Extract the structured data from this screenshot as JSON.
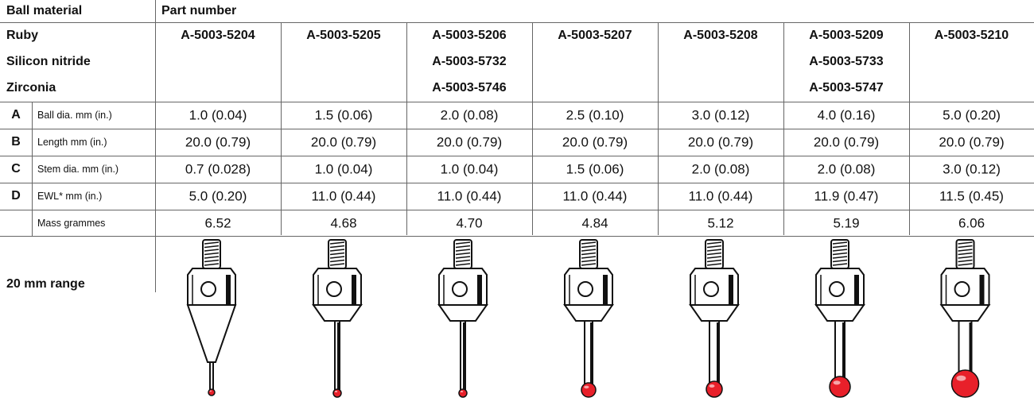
{
  "header": {
    "ball_material": "Ball material",
    "part_number": "Part number"
  },
  "materials": [
    "Ruby",
    "Silicon nitride",
    "Zirconia"
  ],
  "part_numbers": [
    [
      "A-5003-5204"
    ],
    [
      "A-5003-5205"
    ],
    [
      "A-5003-5206",
      "A-5003-5732",
      "A-5003-5746"
    ],
    [
      "A-5003-5207"
    ],
    [
      "A-5003-5208"
    ],
    [
      "A-5003-5209",
      "A-5003-5733",
      "A-5003-5747"
    ],
    [
      "A-5003-5210"
    ]
  ],
  "rows": [
    {
      "letter": "A",
      "label": "Ball dia. mm (in.)",
      "values": [
        "1.0 (0.04)",
        "1.5 (0.06)",
        "2.0 (0.08)",
        "2.5 (0.10)",
        "3.0 (0.12)",
        "4.0 (0.16)",
        "5.0 (0.20)"
      ]
    },
    {
      "letter": "B",
      "label": "Length mm (in.)",
      "values": [
        "20.0 (0.79)",
        "20.0 (0.79)",
        "20.0 (0.79)",
        "20.0 (0.79)",
        "20.0 (0.79)",
        "20.0 (0.79)",
        "20.0 (0.79)"
      ]
    },
    {
      "letter": "C",
      "label": "Stem dia. mm (in.)",
      "values": [
        "0.7 (0.028)",
        "1.0 (0.04)",
        "1.0 (0.04)",
        "1.5 (0.06)",
        "2.0 (0.08)",
        "2.0 (0.08)",
        "3.0 (0.12)"
      ]
    },
    {
      "letter": "D",
      "label": "EWL* mm (in.)",
      "values": [
        "5.0 (0.20)",
        "11.0 (0.44)",
        "11.0 (0.44)",
        "11.0 (0.44)",
        "11.0 (0.44)",
        "11.9 (0.47)",
        "11.5 (0.45)"
      ]
    },
    {
      "label": "Mass grammes",
      "values": [
        "6.52",
        "4.68",
        "4.70",
        "4.84",
        "5.12",
        "5.19",
        "6.06"
      ]
    }
  ],
  "range_label": "20 mm range"
}
